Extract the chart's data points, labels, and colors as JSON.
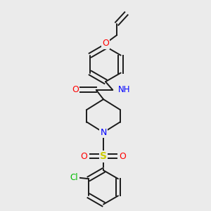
{
  "background_color": "#ebebeb",
  "bond_color": "#1a1a1a",
  "atom_colors": {
    "O": "#ff0000",
    "N": "#0000ff",
    "S": "#cccc00",
    "Cl": "#00bb00",
    "H": "#888888"
  },
  "figsize": [
    3.0,
    3.0
  ],
  "dpi": 100
}
